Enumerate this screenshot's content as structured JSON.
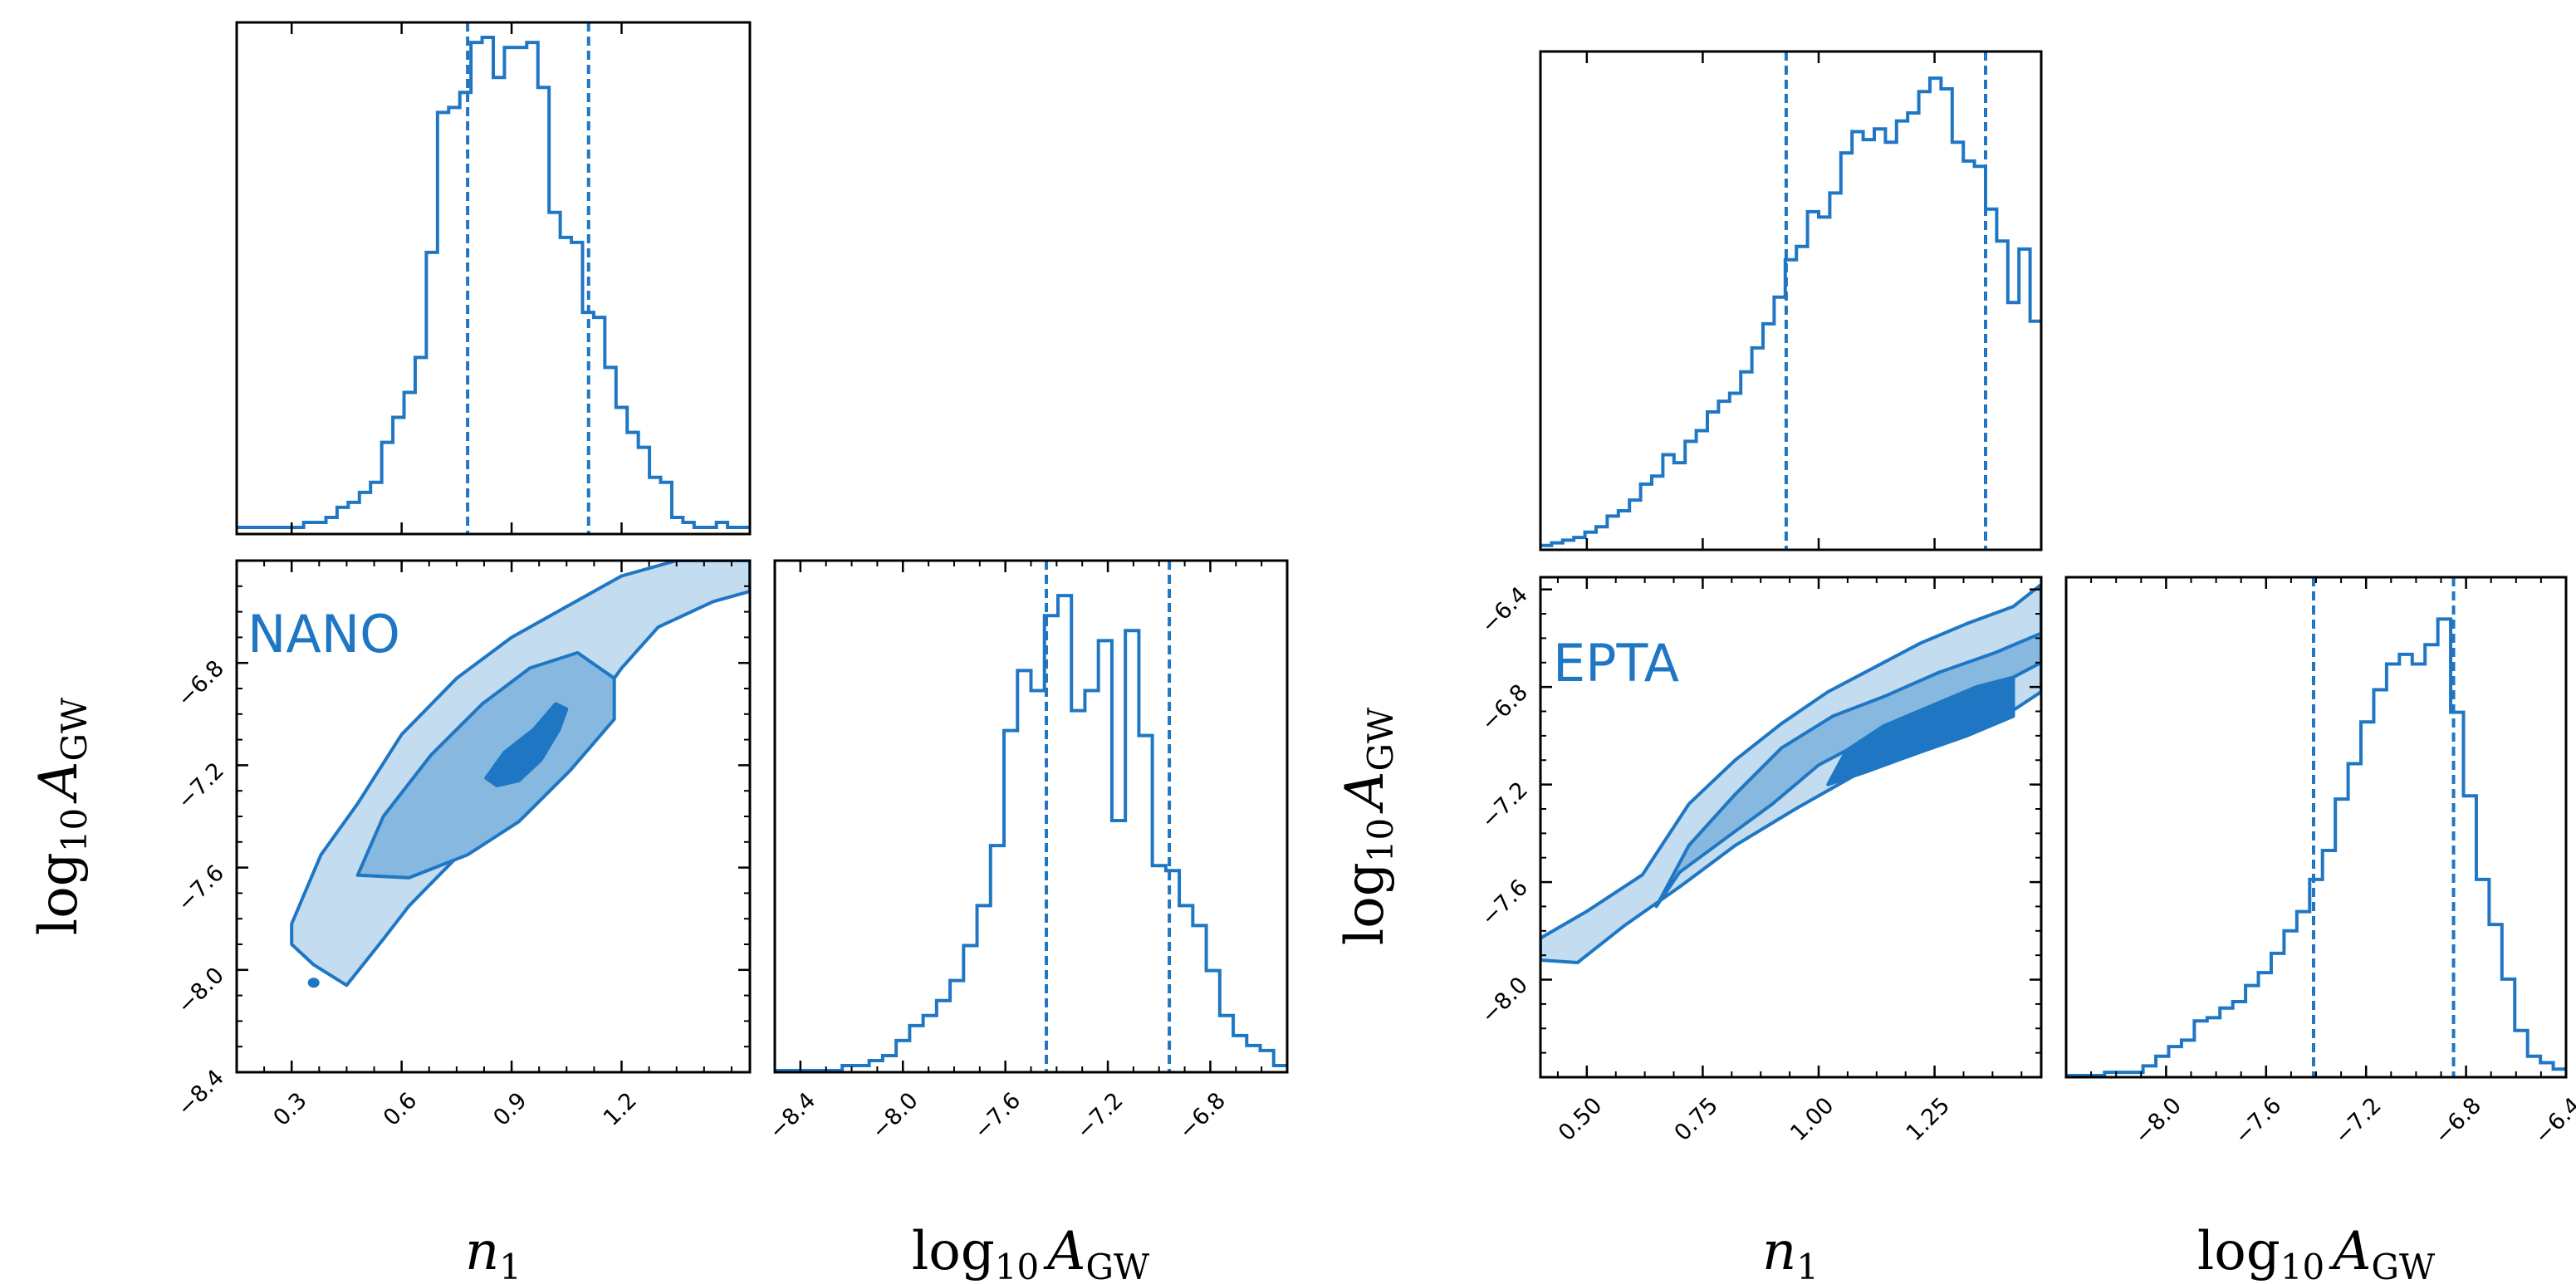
{
  "style": {
    "line_color": "#1f77c4",
    "fill_levels": [
      "#c3dcf0",
      "#86b8e0",
      "#1f77c4"
    ]
  },
  "axis_labels": {
    "n1": {
      "main": "n",
      "sub": "1"
    },
    "logA": {
      "prefix": "log",
      "prefix_sub": "10",
      "main": "A",
      "sub": "GW"
    }
  },
  "chart_data": [
    {
      "id": "nano",
      "label": "NANO",
      "n1_hist": {
        "type": "histogram",
        "range": [
          0.15,
          1.55
        ],
        "values": [
          1,
          1,
          1,
          1,
          1,
          1,
          2,
          2,
          3,
          5,
          6,
          8,
          10,
          18,
          23,
          28,
          35,
          56,
          84,
          85,
          88,
          98,
          99,
          91,
          97,
          97,
          98,
          89,
          64,
          59,
          58,
          44,
          43,
          33,
          25,
          20,
          17,
          11,
          10,
          3,
          2,
          1,
          1,
          2,
          1,
          1
        ],
        "quantiles": [
          0.78,
          1.11
        ],
        "ylim": [
          0,
          102
        ]
      },
      "logA_hist": {
        "type": "histogram",
        "range": [
          -8.5,
          -6.5
        ],
        "values": [
          0,
          0,
          0,
          0,
          0,
          1,
          1,
          2,
          3,
          6,
          9,
          11,
          14,
          18,
          25,
          33,
          45,
          68,
          80,
          76,
          91,
          95,
          72,
          76,
          86,
          50,
          88,
          67,
          41,
          40,
          33,
          29,
          20,
          11,
          7,
          5,
          4,
          1
        ],
        "quantiles": [
          -7.44,
          -6.96
        ],
        "ylim": [
          0,
          102
        ]
      },
      "joint": {
        "type": "contour",
        "x_range": [
          0.15,
          1.55
        ],
        "y_range": [
          -8.4,
          -6.4
        ],
        "levels": [
          {
            "level": 1,
            "points": [
              [
                0.3,
                -7.82
              ],
              [
                0.38,
                -7.55
              ],
              [
                0.48,
                -7.35
              ],
              [
                0.6,
                -7.08
              ],
              [
                0.75,
                -6.86
              ],
              [
                0.9,
                -6.7
              ],
              [
                1.05,
                -6.58
              ],
              [
                1.2,
                -6.46
              ],
              [
                1.35,
                -6.4
              ],
              [
                1.55,
                -6.4
              ],
              [
                1.55,
                -6.52
              ],
              [
                1.45,
                -6.56
              ],
              [
                1.3,
                -6.66
              ],
              [
                1.2,
                -6.82
              ],
              [
                1.1,
                -7.02
              ],
              [
                1.02,
                -7.22
              ],
              [
                0.9,
                -7.4
              ],
              [
                0.75,
                -7.56
              ],
              [
                0.62,
                -7.75
              ],
              [
                0.55,
                -7.88
              ],
              [
                0.45,
                -8.06
              ],
              [
                0.36,
                -7.98
              ],
              [
                0.3,
                -7.9
              ]
            ]
          },
          {
            "level": 2,
            "points": [
              [
                0.48,
                -7.63
              ],
              [
                0.55,
                -7.4
              ],
              [
                0.68,
                -7.16
              ],
              [
                0.82,
                -6.96
              ],
              [
                0.95,
                -6.82
              ],
              [
                1.08,
                -6.76
              ],
              [
                1.18,
                -6.86
              ],
              [
                1.18,
                -7.02
              ],
              [
                1.06,
                -7.22
              ],
              [
                0.92,
                -7.42
              ],
              [
                0.78,
                -7.55
              ],
              [
                0.62,
                -7.64
              ]
            ]
          },
          {
            "level": 3,
            "points": [
              [
                0.83,
                -7.25
              ],
              [
                0.88,
                -7.15
              ],
              [
                0.96,
                -7.06
              ],
              [
                1.02,
                -6.96
              ],
              [
                1.05,
                -6.98
              ],
              [
                1.03,
                -7.06
              ],
              [
                0.98,
                -7.18
              ],
              [
                0.92,
                -7.26
              ],
              [
                0.86,
                -7.28
              ]
            ]
          }
        ],
        "outliers": [
          [
            0.36,
            -8.05
          ]
        ],
        "xticks": [
          0.3,
          0.6,
          0.9,
          1.2
        ],
        "xtick_labels": [
          "0.3",
          "0.6",
          "0.9",
          "1.2"
        ],
        "yticks": [
          -8.4,
          -8.0,
          -7.6,
          -7.2,
          -6.8
        ],
        "ytick_labels": [
          "−8.4",
          "−8.0",
          "−7.6",
          "−7.2",
          "−6.8"
        ]
      },
      "logA_xticks": [
        -8.4,
        -8.0,
        -7.6,
        -7.2,
        -6.8
      ],
      "logA_xtick_labels": [
        "−8.4",
        "−8.0",
        "−7.6",
        "−7.2",
        "−6.8"
      ]
    },
    {
      "id": "epta",
      "label": "EPTA",
      "n1_hist": {
        "type": "histogram",
        "range": [
          0.4,
          1.48
        ],
        "values": [
          1,
          2,
          3,
          4,
          6,
          8,
          12,
          14,
          18,
          24,
          27,
          35,
          32,
          40,
          44,
          51,
          55,
          58,
          66,
          75,
          84,
          94,
          108,
          113,
          126,
          124,
          133,
          148,
          156,
          153,
          157,
          152,
          160,
          163,
          171,
          176,
          172,
          152,
          145,
          143,
          127,
          115,
          92,
          112,
          85
        ],
        "quantiles": [
          0.93,
          1.36
        ],
        "ylim": [
          0,
          186
        ]
      },
      "logA_hist": {
        "type": "histogram",
        "range": [
          -8.4,
          -6.4
        ],
        "values": [
          0,
          0,
          0,
          1,
          1,
          1,
          3,
          6,
          9,
          11,
          17,
          18,
          21,
          23,
          28,
          32,
          38,
          45,
          51,
          61,
          70,
          86,
          97,
          110,
          120,
          128,
          131,
          128,
          134,
          142,
          113,
          87,
          61,
          47,
          30,
          14,
          6,
          4,
          2
        ],
        "quantiles": [
          -7.41,
          -6.85
        ],
        "ylim": [
          0,
          155
        ]
      },
      "joint": {
        "type": "contour",
        "x_range": [
          0.4,
          1.48
        ],
        "y_range": [
          -8.4,
          -6.35
        ],
        "levels": [
          {
            "level": 1,
            "points": [
              [
                0.4,
                -7.83
              ],
              [
                0.5,
                -7.72
              ],
              [
                0.62,
                -7.57
              ],
              [
                0.72,
                -7.28
              ],
              [
                0.82,
                -7.1
              ],
              [
                0.92,
                -6.95
              ],
              [
                1.02,
                -6.82
              ],
              [
                1.12,
                -6.72
              ],
              [
                1.22,
                -6.62
              ],
              [
                1.32,
                -6.54
              ],
              [
                1.42,
                -6.47
              ],
              [
                1.48,
                -6.38
              ],
              [
                1.48,
                -6.82
              ],
              [
                1.4,
                -6.92
              ],
              [
                1.3,
                -7.0
              ],
              [
                1.2,
                -7.08
              ],
              [
                1.08,
                -7.16
              ],
              [
                0.95,
                -7.3
              ],
              [
                0.82,
                -7.45
              ],
              [
                0.7,
                -7.62
              ],
              [
                0.58,
                -7.78
              ],
              [
                0.48,
                -7.93
              ],
              [
                0.4,
                -7.92
              ]
            ]
          },
          {
            "level": 2,
            "points": [
              [
                0.65,
                -7.7
              ],
              [
                0.72,
                -7.45
              ],
              [
                0.82,
                -7.24
              ],
              [
                0.92,
                -7.05
              ],
              [
                1.03,
                -6.92
              ],
              [
                1.14,
                -6.84
              ],
              [
                1.26,
                -6.74
              ],
              [
                1.38,
                -6.66
              ],
              [
                1.48,
                -6.58
              ],
              [
                1.48,
                -6.7
              ],
              [
                1.38,
                -6.8
              ],
              [
                1.25,
                -6.9
              ],
              [
                1.12,
                -7.0
              ],
              [
                1.0,
                -7.12
              ],
              [
                0.9,
                -7.28
              ],
              [
                0.8,
                -7.42
              ],
              [
                0.7,
                -7.56
              ]
            ]
          },
          {
            "level": 3,
            "points": [
              [
                1.02,
                -7.2
              ],
              [
                1.06,
                -7.06
              ],
              [
                1.14,
                -6.96
              ],
              [
                1.24,
                -6.88
              ],
              [
                1.34,
                -6.8
              ],
              [
                1.42,
                -6.76
              ],
              [
                1.42,
                -6.92
              ],
              [
                1.32,
                -7.0
              ],
              [
                1.2,
                -7.08
              ],
              [
                1.1,
                -7.15
              ],
              [
                1.02,
                -7.2
              ]
            ]
          }
        ],
        "outliers": [],
        "xticks": [
          0.5,
          0.75,
          1.0,
          1.25
        ],
        "xtick_labels": [
          "0.50",
          "0.75",
          "1.00",
          "1.25"
        ],
        "yticks": [
          -8.0,
          -7.6,
          -7.2,
          -6.8,
          -6.4
        ],
        "ytick_labels": [
          "−8.0",
          "−7.6",
          "−7.2",
          "−6.8",
          "−6.4"
        ]
      },
      "logA_xticks": [
        -8.0,
        -7.6,
        -7.2,
        -6.8,
        -6.4
      ],
      "logA_xtick_labels": [
        "−8.0",
        "−7.6",
        "−7.2",
        "−6.8",
        "−6.4"
      ]
    }
  ]
}
